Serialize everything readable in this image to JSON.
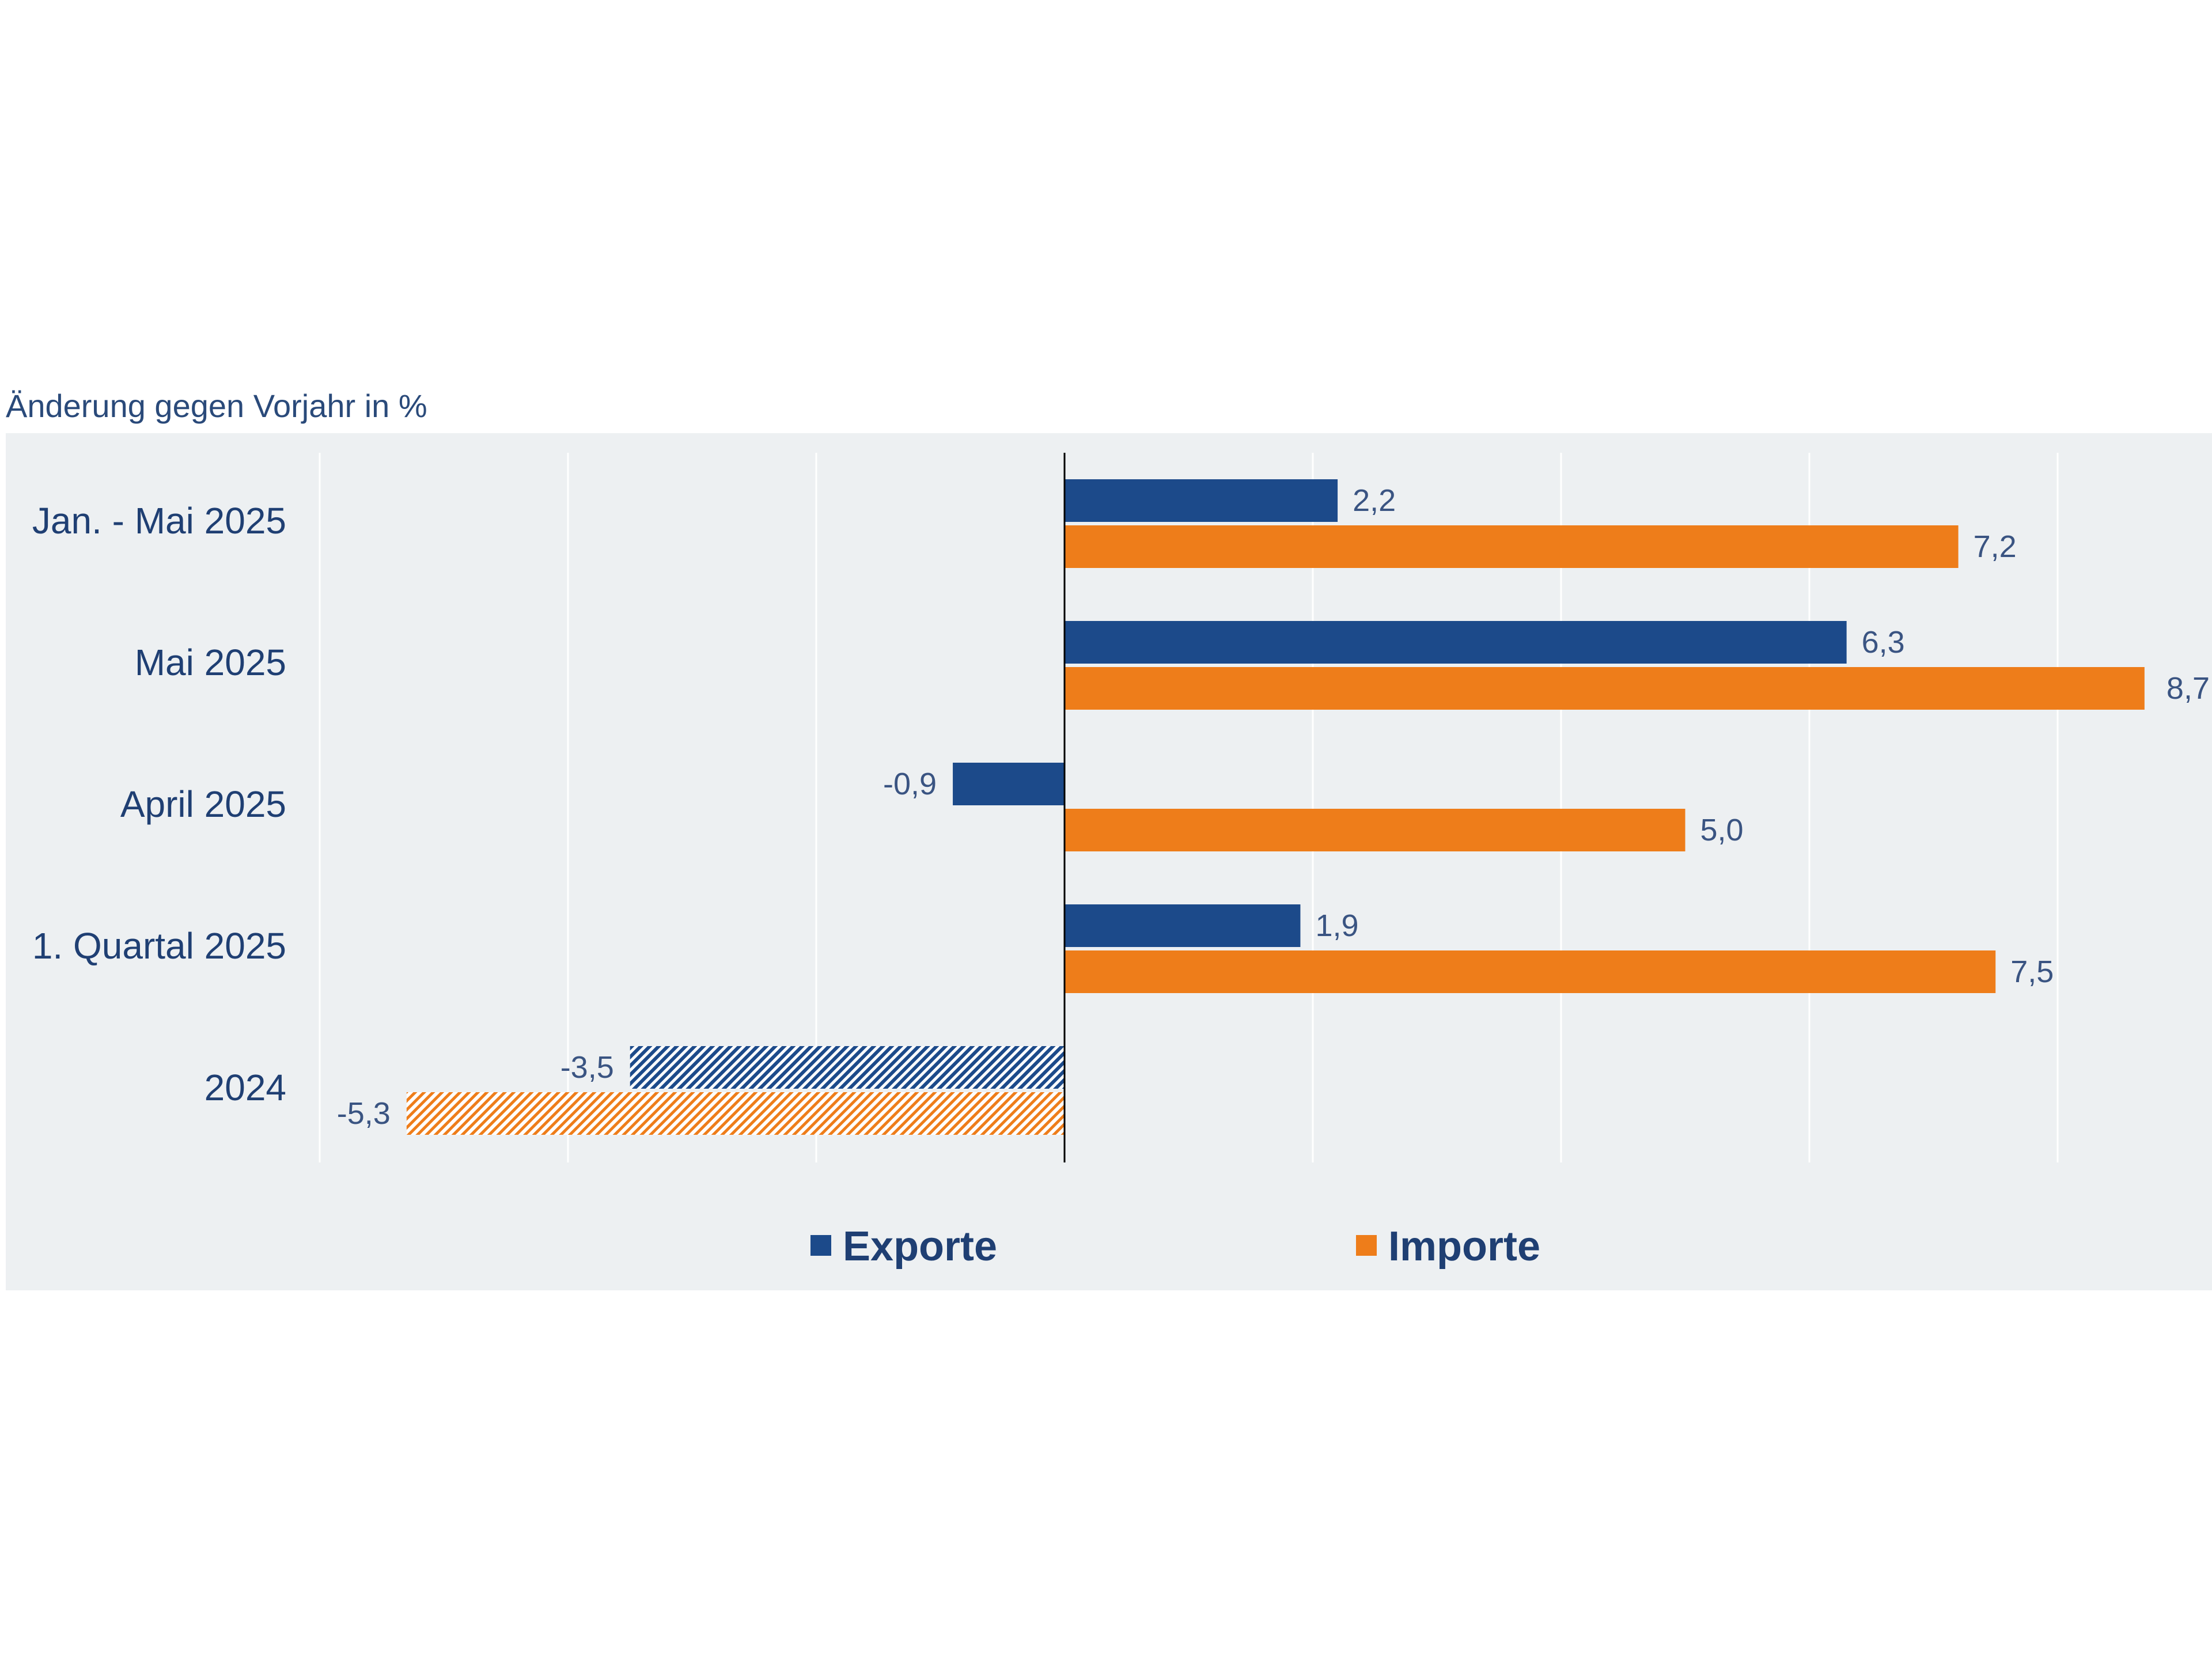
{
  "chart_data": {
    "type": "bar",
    "orientation": "horizontal",
    "title": "Änderung gegen Vorjahr in %",
    "categories": [
      "Jan. - Mai 2025",
      "Mai 2025",
      "April 2025",
      "1. Quartal 2025",
      "2024"
    ],
    "series": [
      {
        "name": "Exporte",
        "color": "#1c4a8a",
        "values": [
          2.2,
          6.3,
          -0.9,
          1.9,
          -3.5
        ],
        "labels": [
          "2,2",
          "6,3",
          "-0,9",
          "1,9",
          "-3,5"
        ]
      },
      {
        "name": "Importe",
        "color": "#ee7d1a",
        "values": [
          7.2,
          8.7,
          5.0,
          7.5,
          -5.3
        ],
        "labels": [
          "7,2",
          "8,7",
          "5,0",
          "7,5",
          "-5,3"
        ]
      }
    ],
    "hatched_categories": [
      "2024"
    ],
    "xlim": [
      -6,
      8.7
    ],
    "grid": true,
    "legend_position": "bottom",
    "background_color": "#edf0f2"
  }
}
